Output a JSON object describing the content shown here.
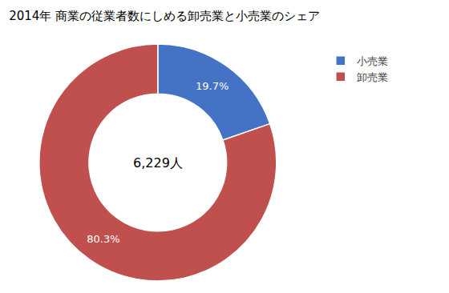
{
  "chart_data": {
    "type": "pie",
    "title": "2014年 商業の従業者数にしめる卸売業と小売業のシェア",
    "categories": [
      "小売業",
      "卸売業"
    ],
    "values": [
      19.7,
      80.3
    ],
    "value_labels": [
      "19.7%",
      "80.3%"
    ],
    "data_labels": true,
    "colors": [
      "#4472C4",
      "#C0504D"
    ],
    "annotations": [
      "6,229人"
    ],
    "legend": "upper right"
  }
}
